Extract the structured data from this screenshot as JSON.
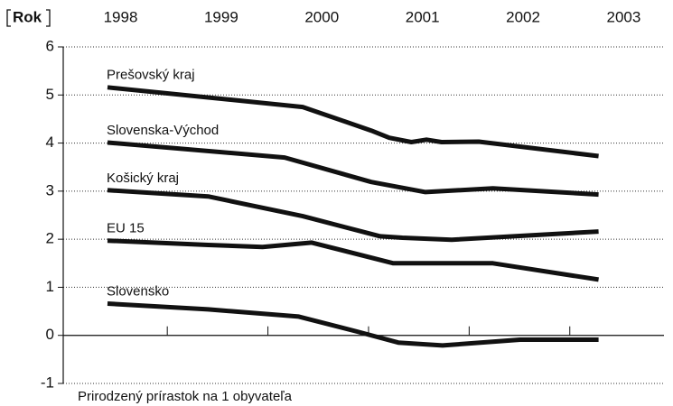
{
  "chart_data": {
    "type": "line",
    "x_label": "Rok",
    "y_label": "Prirodzený prírastok na 1 obyvateľa",
    "xlim": [
      1997.43,
      2003.4
    ],
    "xticks": [
      1998,
      1999,
      2000,
      2001,
      2002,
      2003
    ],
    "ylim": [
      -1,
      6
    ],
    "yticks": [
      -1,
      0,
      1,
      2,
      3,
      4,
      5,
      6
    ],
    "grid": true,
    "color": "#111111",
    "series": [
      {
        "name": "Prešovský kraj",
        "color": "#111111",
        "x": [
          1997.87,
          1999.81,
          2000.49,
          2000.67,
          2000.89,
          2001.04,
          2001.19,
          2001.56,
          2002.75
        ],
        "values": [
          5.16,
          4.75,
          4.26,
          4.11,
          4.02,
          4.07,
          4.02,
          4.03,
          3.73
        ]
      },
      {
        "name": "Slovenska-Východ",
        "color": "#111111",
        "x": [
          1997.87,
          1999.63,
          2000.49,
          2001.03,
          2001.7,
          2002.75
        ],
        "values": [
          4.01,
          3.7,
          3.19,
          2.98,
          3.06,
          2.93
        ]
      },
      {
        "name": "Košický kraj",
        "color": "#111111",
        "x": [
          1997.87,
          1998.87,
          1999.81,
          2000.58,
          2000.8,
          2001.29,
          2002.75
        ],
        "values": [
          3.02,
          2.89,
          2.48,
          2.06,
          2.03,
          1.99,
          2.16
        ]
      },
      {
        "name": "EU 15",
        "color": "#111111",
        "x": [
          1997.87,
          1998.87,
          1999.41,
          1999.9,
          2000.71,
          2001.7,
          2002.75
        ],
        "values": [
          1.97,
          1.88,
          1.84,
          1.93,
          1.5,
          1.5,
          1.16
        ]
      },
      {
        "name": "Slovensko",
        "color": "#111111",
        "x": [
          1997.87,
          1998.87,
          1999.77,
          2000.35,
          2000.76,
          2001.2,
          2001.97,
          2002.75
        ],
        "values": [
          0.66,
          0.54,
          0.39,
          0.08,
          -0.15,
          -0.21,
          -0.09,
          -0.09
        ]
      }
    ]
  }
}
